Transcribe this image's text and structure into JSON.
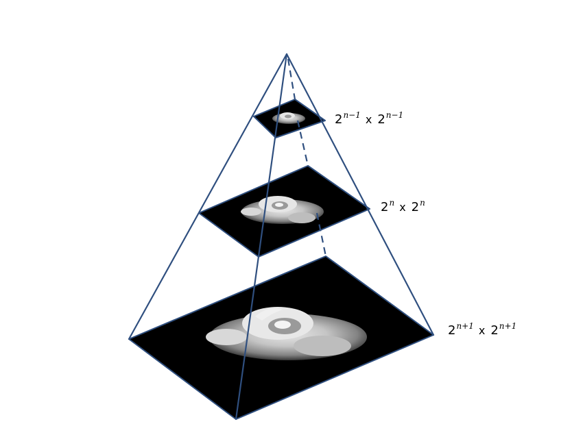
{
  "colors": {
    "edge": "#2f4f7f",
    "layer_fill": "#000000",
    "background": "#ffffff",
    "text": "#000000"
  },
  "levels": [
    {
      "id": "top",
      "base": "2",
      "exp": "n−1",
      "times": "x"
    },
    {
      "id": "mid",
      "base": "2",
      "exp": "n",
      "times": "x"
    },
    {
      "id": "bottom",
      "base": "2",
      "exp": "n+1",
      "times": "x"
    }
  ]
}
